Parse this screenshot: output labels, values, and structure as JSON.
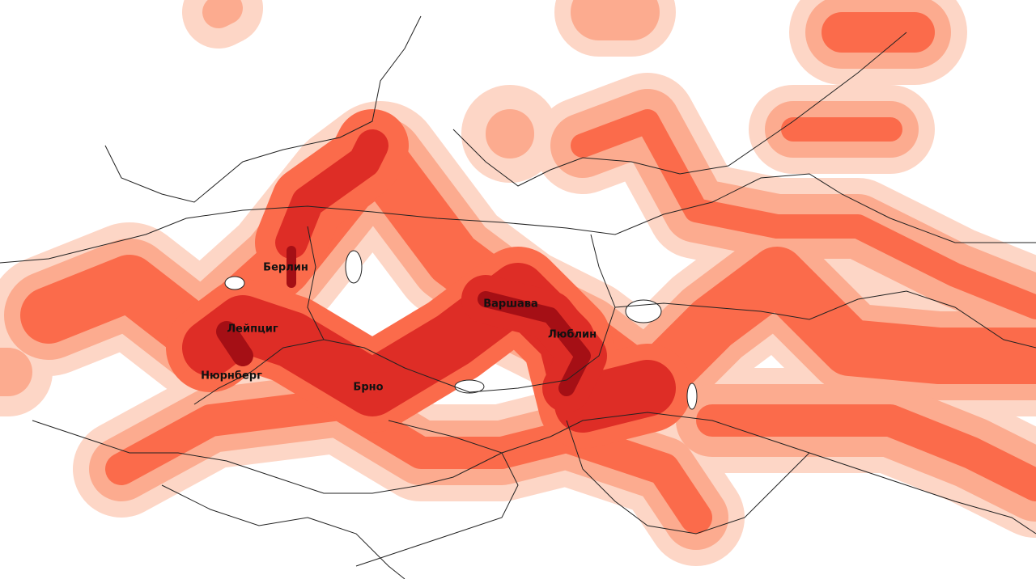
{
  "cities": [
    "Берлин",
    "Лейпциг",
    "Нюрнберг",
    "Брно",
    "Варшава",
    "Люблин"
  ]
}
